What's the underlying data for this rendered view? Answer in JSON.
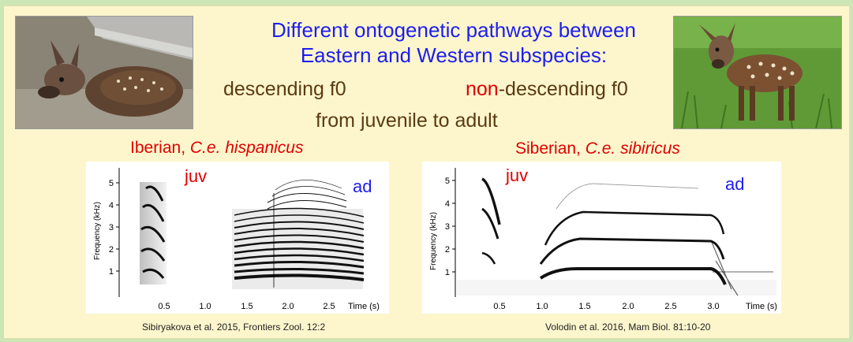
{
  "title": {
    "line1": "Different ontogenetic pathways between",
    "line2": "Eastern and Western subspecies:"
  },
  "pathways": {
    "descending": "descending f0",
    "non_prefix": "non",
    "non_rest": "-descending f0",
    "juvenile_adult": "from juvenile to adult"
  },
  "left": {
    "subspecies_common": "Iberian, ",
    "subspecies_latin": "C.e. hispanicus",
    "juv_label": "juv",
    "ad_label": "ad",
    "ylabel": "Frequency (kHz)",
    "xlabel": "Time (s)",
    "citation": "Sibiryakova et al. 2015, Frontiers Zool. 12:2"
  },
  "right": {
    "subspecies_common": "Siberian, ",
    "subspecies_latin": "C.e. sibiricus",
    "juv_label": "juv",
    "ad_label": "ad",
    "ylabel": "Frequency (kHz)",
    "xlabel": "Time (s)",
    "citation": "Volodin et al. 2016, Mam Biol. 81:10-20"
  },
  "chart_data": [
    {
      "type": "heatmap",
      "title": "Iberian, C.e. hispanicus",
      "xlabel": "Time (s)",
      "ylabel": "Frequency (kHz)",
      "xlim": [
        0,
        3.0
      ],
      "ylim": [
        0,
        5.4
      ],
      "x_ticks": [
        "0.5",
        "1.0",
        "1.5",
        "2.0",
        "2.5"
      ],
      "y_ticks": [
        "1",
        "2",
        "3",
        "4",
        "5"
      ],
      "annotations": [
        "juv",
        "ad"
      ]
    },
    {
      "type": "heatmap",
      "title": "Siberian, C.e. sibiricus",
      "xlabel": "Time (s)",
      "ylabel": "Frequency (kHz)",
      "xlim": [
        0,
        3.4
      ],
      "ylim": [
        0,
        5.4
      ],
      "x_ticks": [
        "0.5",
        "1.0",
        "1.5",
        "2.0",
        "2.5",
        "3.0"
      ],
      "y_ticks": [
        "1",
        "2",
        "3",
        "4",
        "5"
      ],
      "annotations": [
        "juv",
        "ad"
      ]
    }
  ],
  "colors": {
    "title": "#1d1df0",
    "brown": "#5b3a12",
    "red": "#e00000",
    "ad_blue": "#1d1df0",
    "slide_bg": "#fdf6cd",
    "frame_bg": "#cce6b5"
  }
}
